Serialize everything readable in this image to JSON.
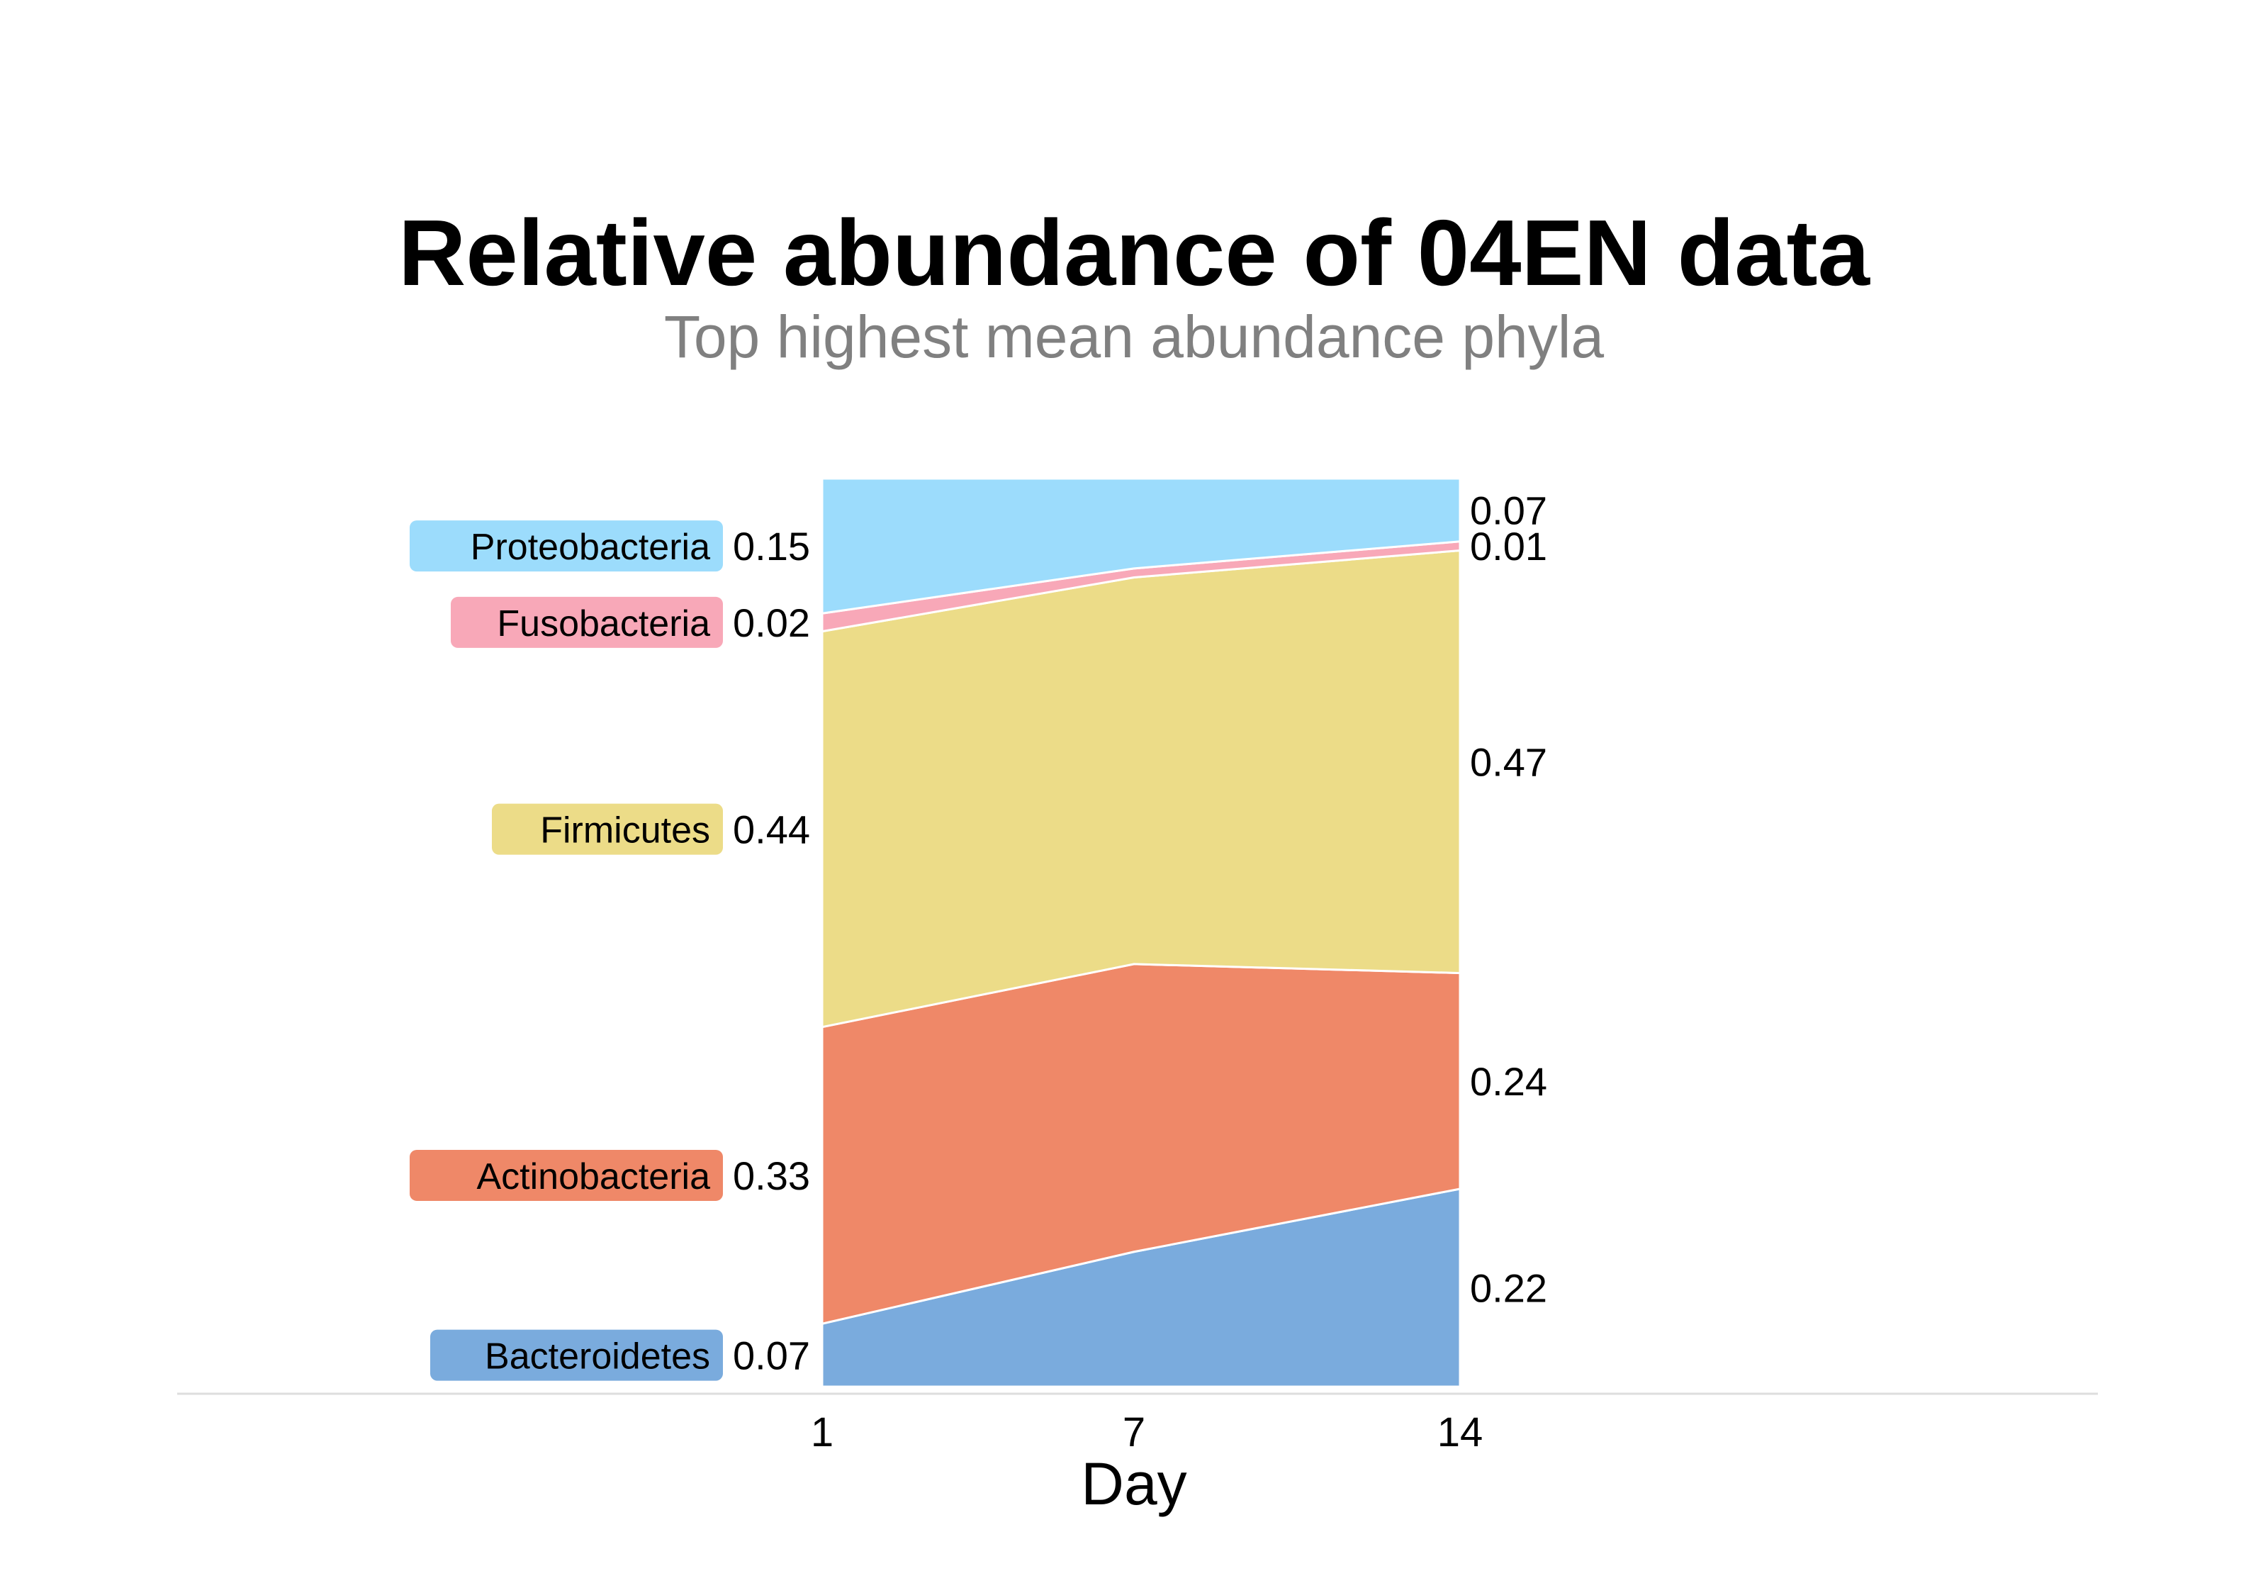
{
  "chart_data": {
    "type": "area",
    "title": "Relative abundance of 04EN data",
    "subtitle": "Top highest mean abundance phyla",
    "xlabel": "Day",
    "ylabel": "",
    "x": [
      "1",
      "7",
      "14"
    ],
    "ylim": [
      0,
      1
    ],
    "stacked": true,
    "grid": false,
    "legend": "direct-labels-left",
    "series": [
      {
        "name": "Bacteroidetes",
        "color": "#7aabdd",
        "values": [
          0.07,
          0.15,
          0.22
        ],
        "start_label": "0.07",
        "end_label": "0.22"
      },
      {
        "name": "Actinobacteria",
        "color": "#ef8868",
        "values": [
          0.33,
          0.32,
          0.24
        ],
        "start_label": "0.33",
        "end_label": "0.24"
      },
      {
        "name": "Firmicutes",
        "color": "#ecdc88",
        "values": [
          0.44,
          0.43,
          0.47
        ],
        "start_label": "0.44",
        "end_label": "0.47"
      },
      {
        "name": "Fusobacteria",
        "color": "#f8a8b8",
        "values": [
          0.02,
          0.01,
          0.01
        ],
        "start_label": "0.02",
        "end_label": "0.01"
      },
      {
        "name": "Proteobacteria",
        "color": "#9cdcfc",
        "values": [
          0.15,
          0.1,
          0.07
        ],
        "start_label": "0.15",
        "end_label": "0.07"
      }
    ]
  }
}
